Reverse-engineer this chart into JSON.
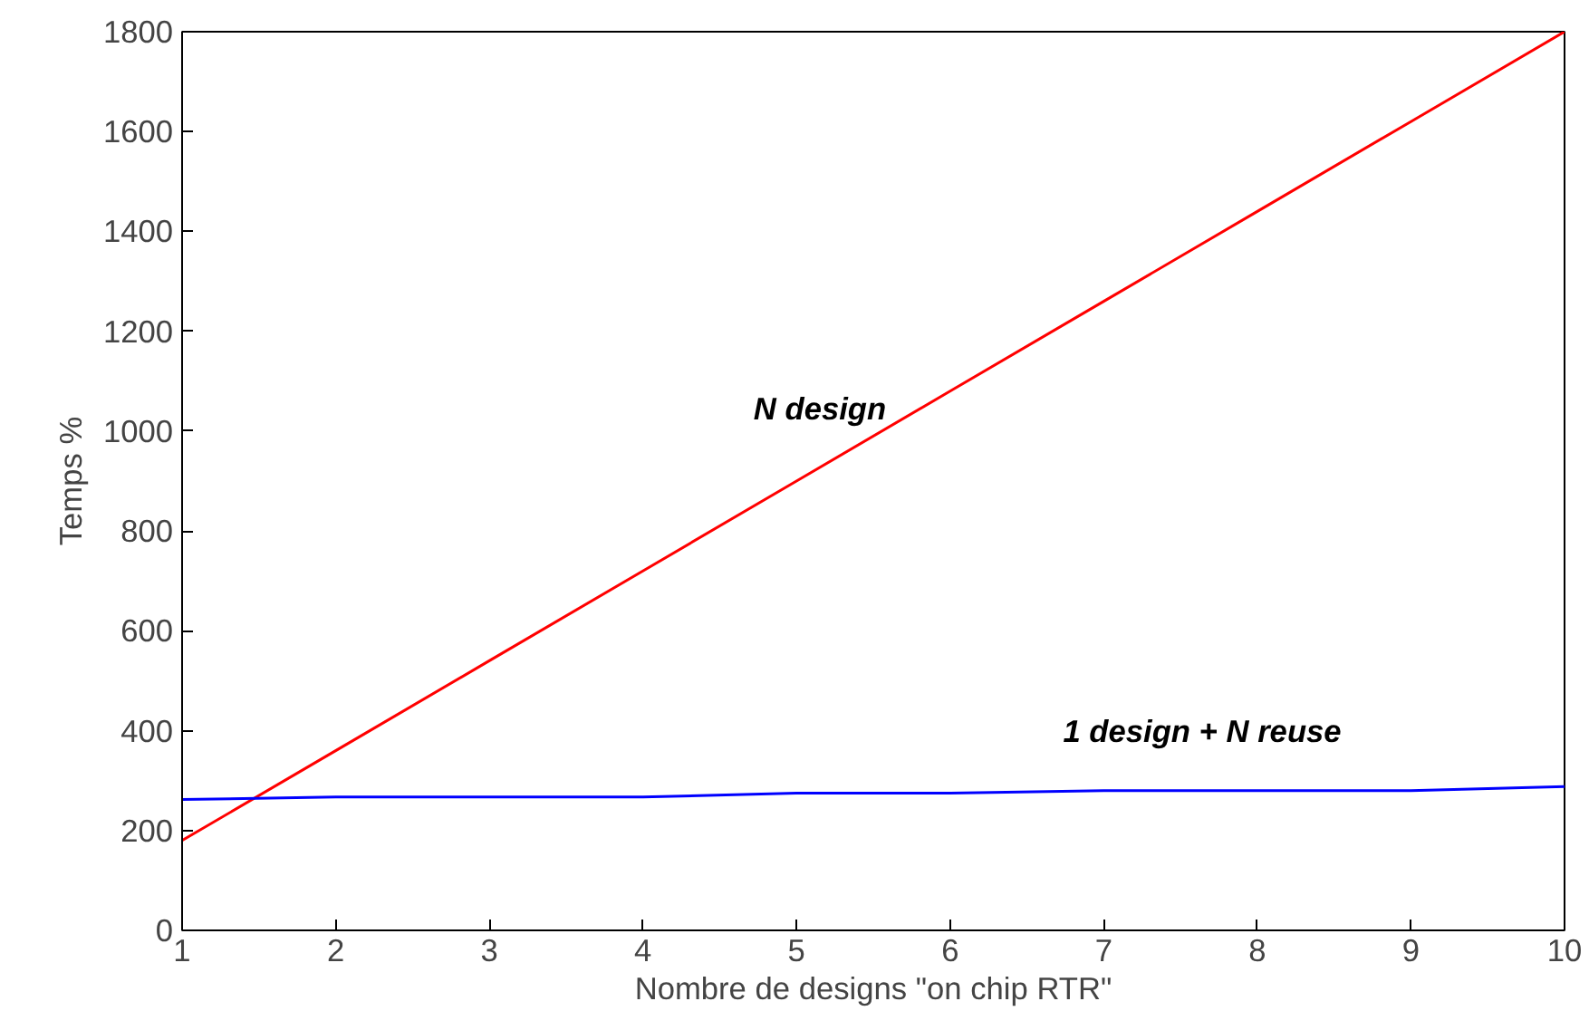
{
  "chart_data": {
    "type": "line",
    "xlabel": "Nombre de designs \"on chip RTR\"",
    "ylabel": "Temps %",
    "x": [
      1,
      2,
      3,
      4,
      5,
      6,
      7,
      8,
      9,
      10
    ],
    "series": [
      {
        "color": "#ff0000",
        "values": [
          180,
          360,
          540,
          720,
          900,
          1080,
          1260,
          1440,
          1620,
          1800
        ]
      },
      {
        "color": "#0000ff",
        "values": [
          262,
          267,
          267,
          267,
          275,
          275,
          280,
          280,
          280,
          288
        ]
      }
    ],
    "annotations": [
      "N design",
      "1 design + N reuse"
    ],
    "xlim": [
      1,
      10
    ],
    "xticks": [
      1,
      2,
      3,
      4,
      5,
      6,
      7,
      8,
      9,
      10
    ],
    "ylim": [
      0,
      1800
    ],
    "yticks": [
      0,
      200,
      400,
      600,
      800,
      1000,
      1200,
      1400,
      1600,
      1800
    ],
    "grid": false,
    "marker": "none",
    "line_style": "solid"
  }
}
